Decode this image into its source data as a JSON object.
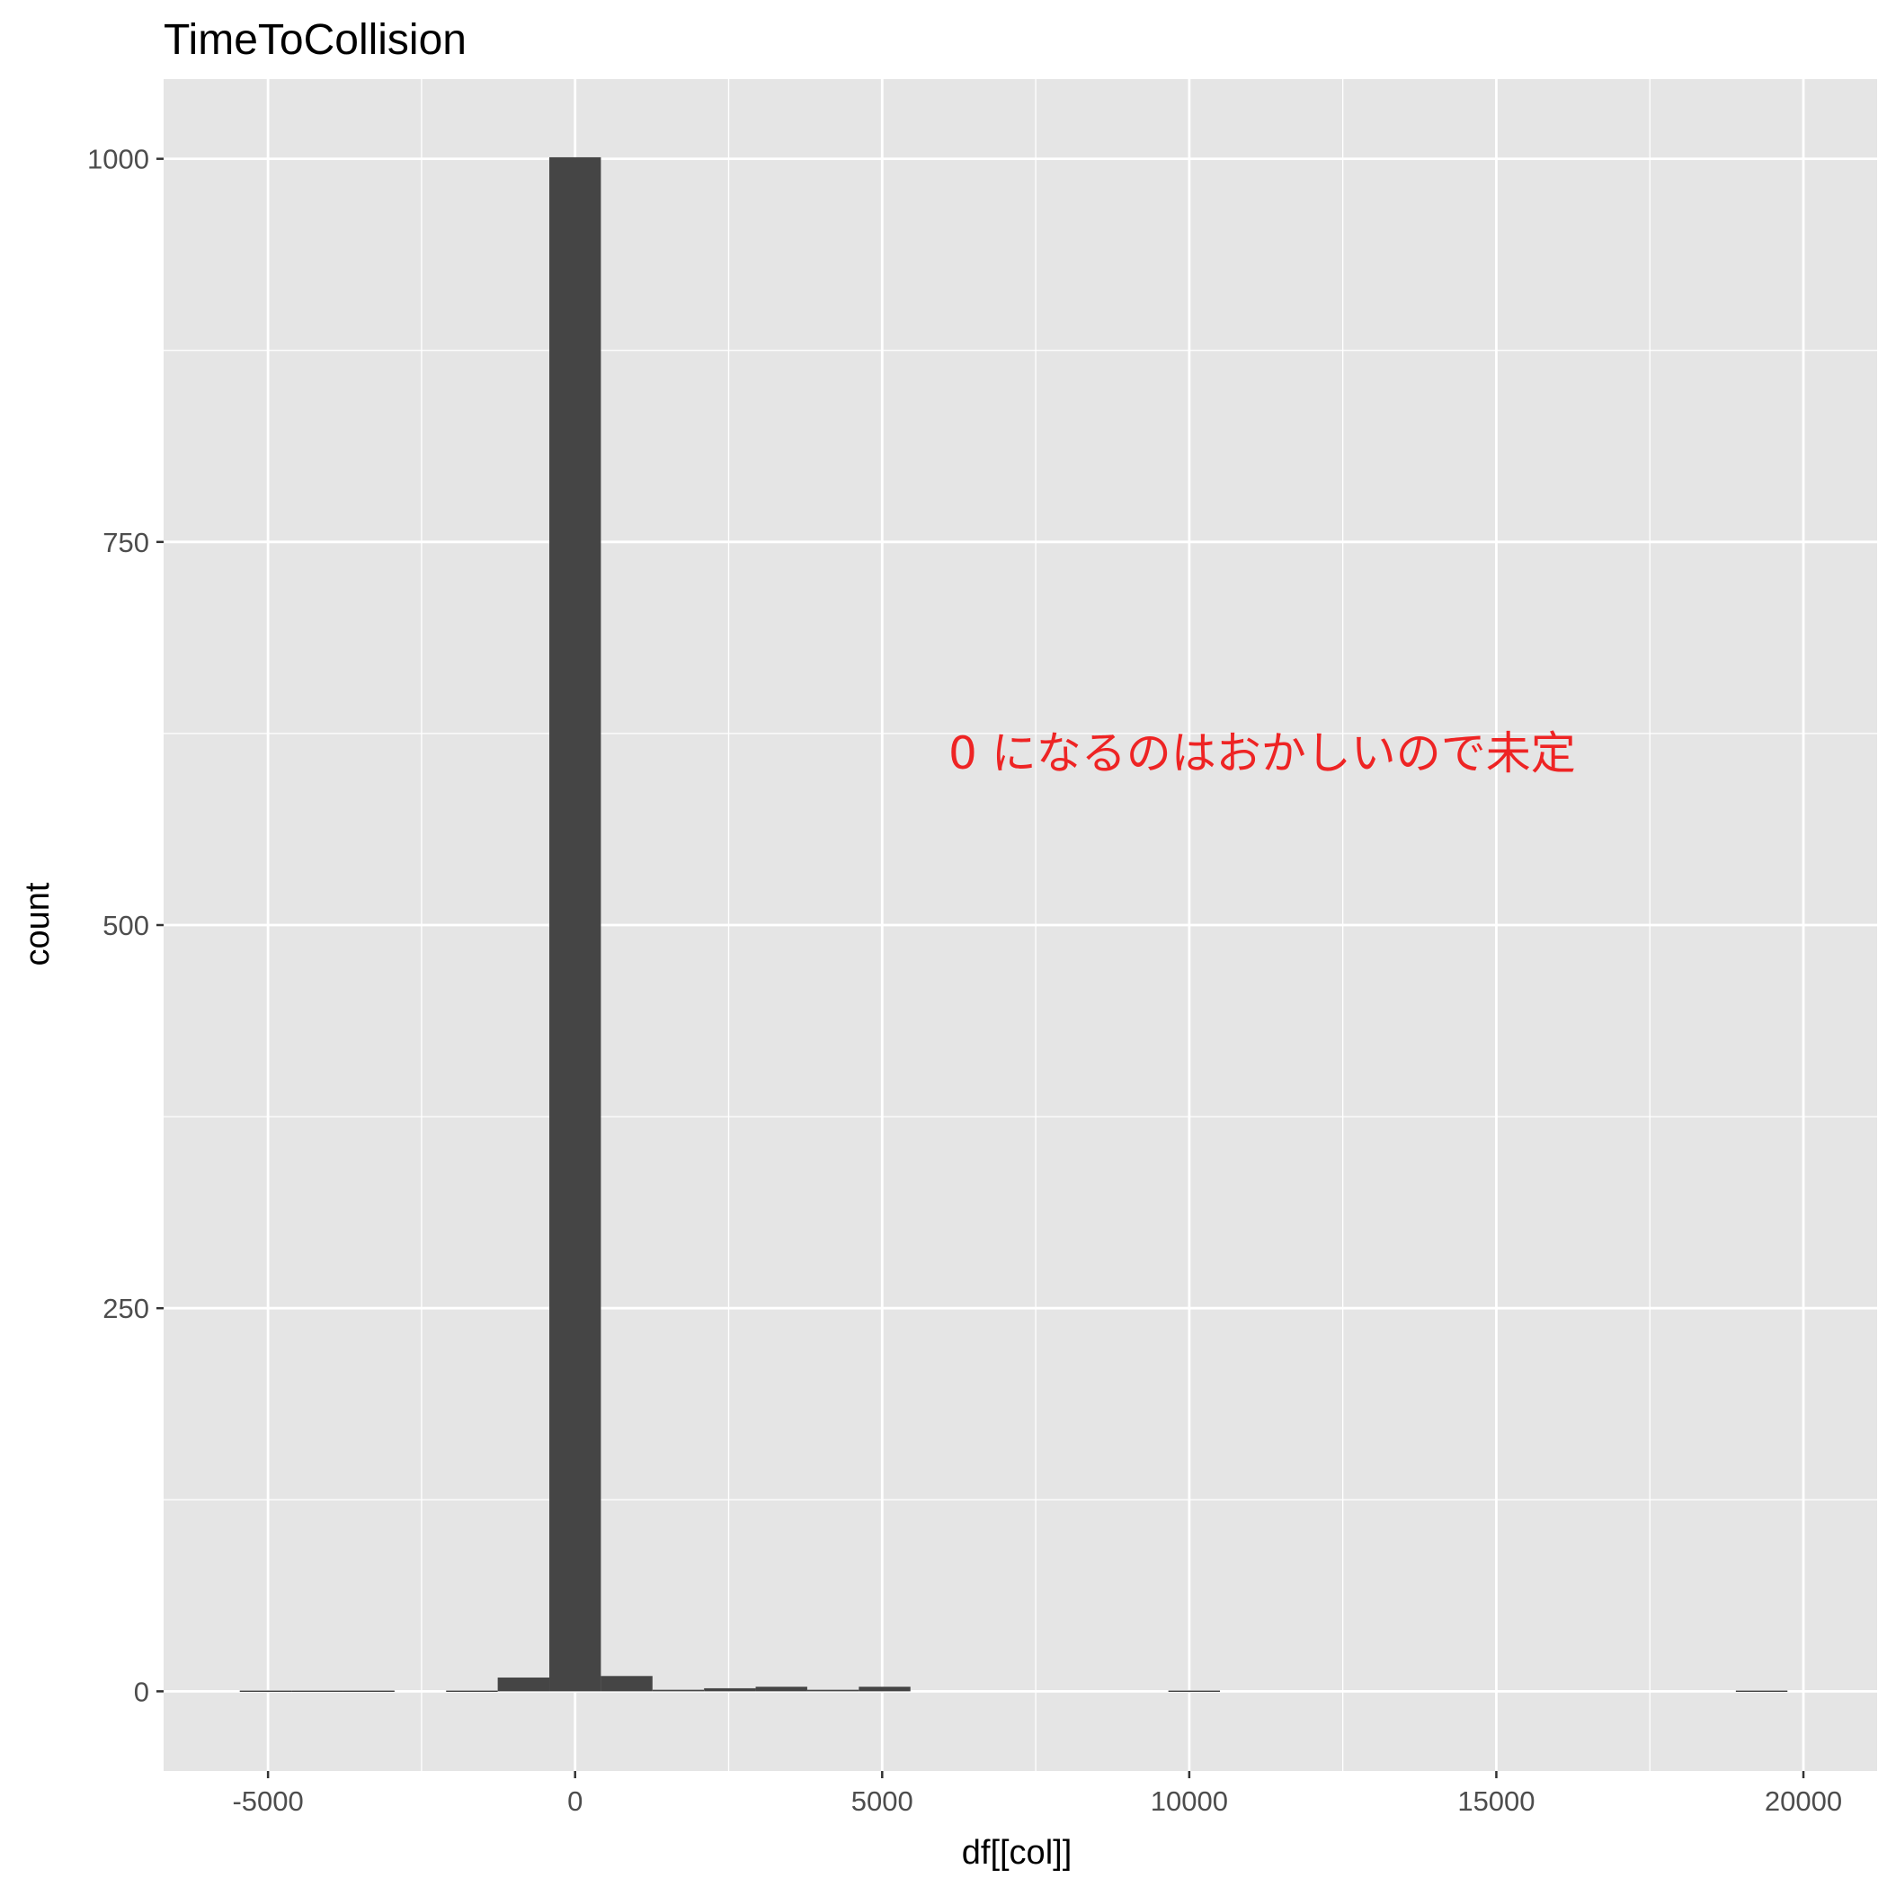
{
  "chart_data": {
    "type": "bar",
    "title": "TimeToCollision",
    "xlabel": "df[[col]]",
    "ylabel": "count",
    "xlim": [
      -6700,
      21200
    ],
    "ylim": [
      -52,
      1052
    ],
    "x_ticks": [
      -5000,
      0,
      5000,
      10000,
      15000,
      20000
    ],
    "x_tick_labels": [
      "-5000",
      "0",
      "5000",
      "10000",
      "15000",
      "20000"
    ],
    "y_ticks": [
      0,
      250,
      500,
      750,
      1000
    ],
    "y_tick_labels": [
      "0",
      "250",
      "500",
      "750",
      "1000"
    ],
    "grid": true,
    "bin_width": 840,
    "bins": [
      {
        "start": -5460,
        "end": -4620,
        "count": 0.5
      },
      {
        "start": -4620,
        "end": -3780,
        "count": 0.5
      },
      {
        "start": -3780,
        "end": -2940,
        "count": 0.5
      },
      {
        "start": -2100,
        "end": -1260,
        "count": 0.5
      },
      {
        "start": -1260,
        "end": -420,
        "count": 9
      },
      {
        "start": -420,
        "end": 420,
        "count": 1001
      },
      {
        "start": 420,
        "end": 1260,
        "count": 10
      },
      {
        "start": 1260,
        "end": 2100,
        "count": 1
      },
      {
        "start": 2100,
        "end": 2940,
        "count": 2
      },
      {
        "start": 2940,
        "end": 3780,
        "count": 3
      },
      {
        "start": 3780,
        "end": 4620,
        "count": 1
      },
      {
        "start": 4620,
        "end": 5460,
        "count": 3
      },
      {
        "start": 9660,
        "end": 10500,
        "count": 0.5
      },
      {
        "start": 18900,
        "end": 19740,
        "count": 0.5
      }
    ],
    "annotation": "0 になるのはおかしいので未定",
    "colors": {
      "panel": "#e5e5e5",
      "grid": "#ffffff",
      "bar": "#454545",
      "annotation": "#ee2424"
    }
  }
}
